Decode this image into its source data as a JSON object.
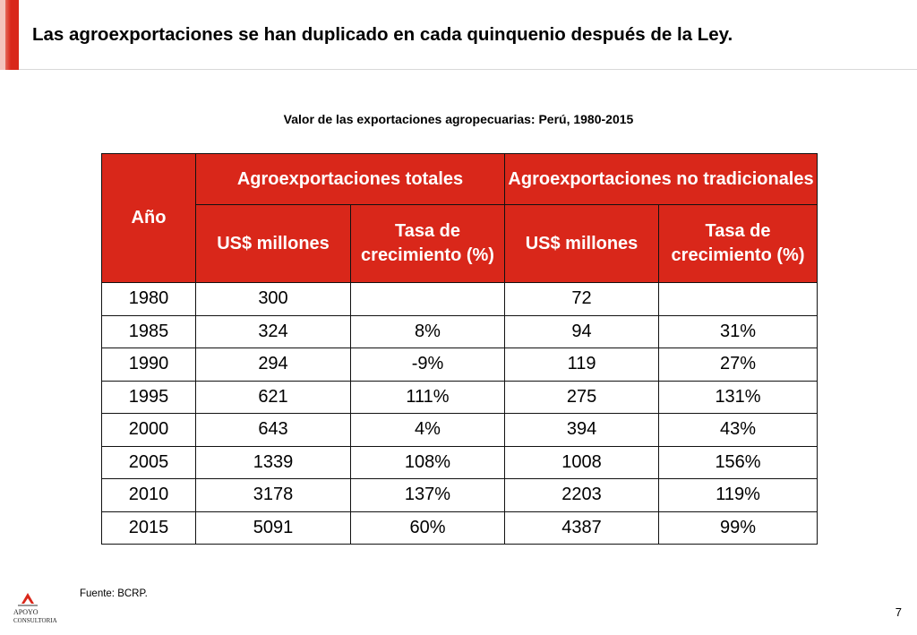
{
  "slide": {
    "title": "Las agroexportaciones se han duplicado en cada quinquenio después de la Ley.",
    "subtitle": "Valor de las exportaciones agropecuarias: Perú, 1980-2015",
    "source": "Fuente: BCRP.",
    "page_number": "7",
    "logo": {
      "line1": "APOYO",
      "line2": "CONSULTORIA"
    }
  },
  "colors": {
    "accent": "#d9271a",
    "header_text": "#ffffff"
  },
  "table": {
    "col_year": "Año",
    "group_total": "Agroexportaciones totales",
    "group_nontrad": "Agroexportaciones no tradicionales",
    "sub_usd": "US$ millones",
    "sub_rate": "Tasa de crecimiento (%)",
    "rows": [
      {
        "year": "1980",
        "total_usd": "300",
        "total_rate": "",
        "nontrad_usd": "72",
        "nontrad_rate": ""
      },
      {
        "year": "1985",
        "total_usd": "324",
        "total_rate": "8%",
        "nontrad_usd": "94",
        "nontrad_rate": "31%"
      },
      {
        "year": "1990",
        "total_usd": "294",
        "total_rate": "-9%",
        "nontrad_usd": "119",
        "nontrad_rate": "27%"
      },
      {
        "year": "1995",
        "total_usd": "621",
        "total_rate": "111%",
        "nontrad_usd": "275",
        "nontrad_rate": "131%"
      },
      {
        "year": "2000",
        "total_usd": "643",
        "total_rate": "4%",
        "nontrad_usd": "394",
        "nontrad_rate": "43%"
      },
      {
        "year": "2005",
        "total_usd": "1339",
        "total_rate": "108%",
        "nontrad_usd": "1008",
        "nontrad_rate": "156%"
      },
      {
        "year": "2010",
        "total_usd": "3178",
        "total_rate": "137%",
        "nontrad_usd": "2203",
        "nontrad_rate": "119%"
      },
      {
        "year": "2015",
        "total_usd": "5091",
        "total_rate": "60%",
        "nontrad_usd": "4387",
        "nontrad_rate": "99%"
      }
    ]
  }
}
